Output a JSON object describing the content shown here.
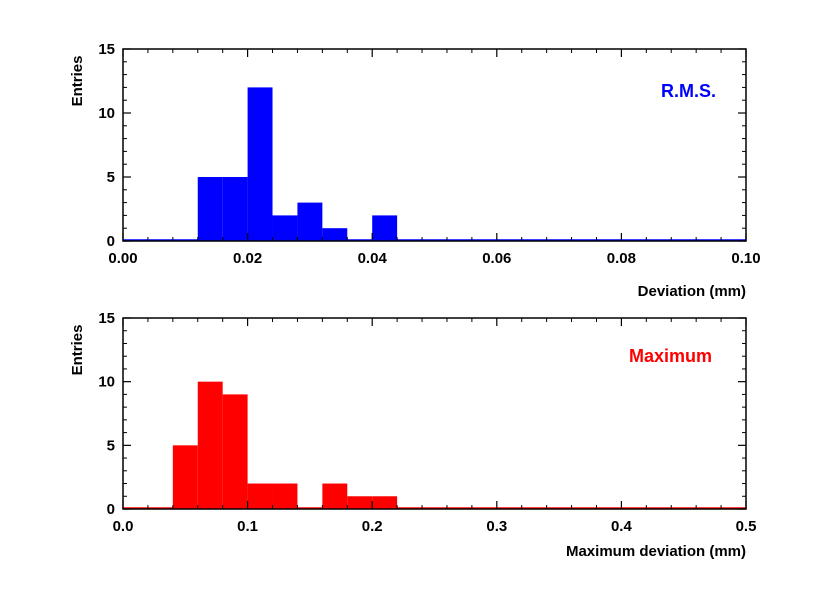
{
  "chart_data": [
    {
      "type": "bar",
      "annotation": "R.M.S.",
      "annotation_color": "#0000ff",
      "bar_color": "#0000ff",
      "xlabel": "Deviation (mm)",
      "ylabel": "Entries",
      "xlim": [
        0,
        0.1
      ],
      "ylim": [
        0,
        15
      ],
      "x_ticks": [
        "0.00",
        "0.02",
        "0.04",
        "0.06",
        "0.08",
        "0.10"
      ],
      "y_ticks": [
        "0",
        "5",
        "10",
        "15"
      ],
      "bin_width": 0.004,
      "bins": [
        {
          "x0": 0.012,
          "x1": 0.016,
          "count": 5
        },
        {
          "x0": 0.016,
          "x1": 0.02,
          "count": 5
        },
        {
          "x0": 0.02,
          "x1": 0.024,
          "count": 12
        },
        {
          "x0": 0.024,
          "x1": 0.028,
          "count": 2
        },
        {
          "x0": 0.028,
          "x1": 0.032,
          "count": 3
        },
        {
          "x0": 0.032,
          "x1": 0.036,
          "count": 1
        },
        {
          "x0": 0.036,
          "x1": 0.04,
          "count": 0
        },
        {
          "x0": 0.04,
          "x1": 0.044,
          "count": 2
        }
      ]
    },
    {
      "type": "bar",
      "annotation": "Maximum",
      "annotation_color": "#ff0000",
      "bar_color": "#ff0000",
      "xlabel": "Maximum deviation (mm)",
      "ylabel": "Entries",
      "xlim": [
        0,
        0.5
      ],
      "ylim": [
        0,
        15
      ],
      "x_ticks": [
        "0.0",
        "0.1",
        "0.2",
        "0.3",
        "0.4",
        "0.5"
      ],
      "y_ticks": [
        "0",
        "5",
        "10",
        "15"
      ],
      "bin_width": 0.02,
      "bins": [
        {
          "x0": 0.04,
          "x1": 0.06,
          "count": 5
        },
        {
          "x0": 0.06,
          "x1": 0.08,
          "count": 10
        },
        {
          "x0": 0.08,
          "x1": 0.1,
          "count": 9
        },
        {
          "x0": 0.1,
          "x1": 0.12,
          "count": 2
        },
        {
          "x0": 0.12,
          "x1": 0.14,
          "count": 2
        },
        {
          "x0": 0.14,
          "x1": 0.16,
          "count": 0
        },
        {
          "x0": 0.16,
          "x1": 0.18,
          "count": 2
        },
        {
          "x0": 0.18,
          "x1": 0.2,
          "count": 1
        },
        {
          "x0": 0.2,
          "x1": 0.22,
          "count": 1
        }
      ]
    }
  ]
}
